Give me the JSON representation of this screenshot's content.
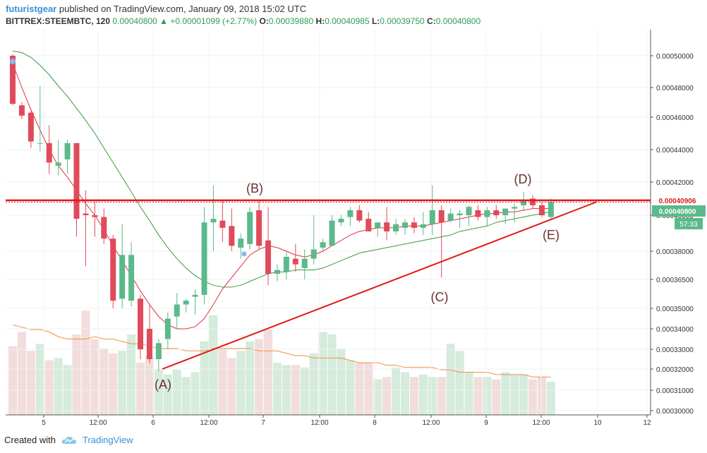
{
  "header": {
    "user": "futuristgear",
    "published": "published on TradingView.com, January 09, 2018 15:02 UTC",
    "symbol": "BITTREX:STEEMBTC, 120",
    "last": "0.00040800",
    "change": "▲ +0.00001099 (+2.77%)",
    "o_label": "O:",
    "o": "0.00039880",
    "h_label": "H:",
    "h": "0.00040985",
    "l_label": "L:",
    "l": "0.00039750",
    "c_label": "C:",
    "c": "0.00040800"
  },
  "footer": {
    "created": "Created with",
    "brand": "TradingView"
  },
  "colors": {
    "up": "#5bb98b",
    "down": "#e04b5a",
    "ma_fast": "#e0323c",
    "ma_slow": "#3c9a3c",
    "vol_ma": "#f09040",
    "resistance": "#e01818",
    "support": "#e01818"
  },
  "chart_data": {
    "type": "candlestick",
    "price_ticks": [
      "0.00050000",
      "0.00048000",
      "0.00046000",
      "0.00044000",
      "0.00042000",
      "0.00040000",
      "0.00038000",
      "0.00036500",
      "0.00035000",
      "0.00034000",
      "0.00033000",
      "0.00032000",
      "0.00031000",
      "0.00030000"
    ],
    "time_ticks": [
      "5",
      "12:00",
      "6",
      "12:00",
      "7",
      "12:00",
      "8",
      "12:00",
      "9",
      "12:00",
      "10",
      "12"
    ],
    "price_badges": {
      "resistance": "0.00040906",
      "last": "0.00040800",
      "countdown": "57:33"
    },
    "annotations": [
      "(A)",
      "(B)",
      "(C)",
      "(D)",
      "(E)"
    ],
    "candles": [
      {
        "o": 0.0005,
        "h": 0.000501,
        "l": 0.000468,
        "c": 0.000469
      },
      {
        "o": 0.000468,
        "h": 0.00047,
        "l": 0.000459,
        "c": 0.000461
      },
      {
        "o": 0.000463,
        "h": 0.000464,
        "l": 0.000441,
        "c": 0.000445
      },
      {
        "o": 0.000444,
        "h": 0.000481,
        "l": 0.000439,
        "c": 0.000444
      },
      {
        "o": 0.000444,
        "h": 0.000455,
        "l": 0.000425,
        "c": 0.000432
      },
      {
        "o": 0.00043,
        "h": 0.000446,
        "l": 0.000424,
        "c": 0.000432
      },
      {
        "o": 0.000434,
        "h": 0.000446,
        "l": 0.000425,
        "c": 0.000444
      },
      {
        "o": 0.000444,
        "h": 0.000444,
        "l": 0.000388,
        "c": 0.000398
      },
      {
        "o": 0.000401,
        "h": 0.000415,
        "l": 0.000372,
        "c": 0.0004
      },
      {
        "o": 0.0004,
        "h": 0.000408,
        "l": 0.000388,
        "c": 0.000399
      },
      {
        "o": 0.000399,
        "h": 0.000404,
        "l": 0.000384,
        "c": 0.000387
      },
      {
        "o": 0.000387,
        "h": 0.000389,
        "l": 0.00035,
        "c": 0.000354
      },
      {
        "o": 0.000355,
        "h": 0.000395,
        "l": 0.00035,
        "c": 0.000378
      },
      {
        "o": 0.000354,
        "h": 0.000385,
        "l": 0.000351,
        "c": 0.000378
      },
      {
        "o": 0.000355,
        "h": 0.000357,
        "l": 0.000325,
        "c": 0.00033
      },
      {
        "o": 0.00034,
        "h": 0.000352,
        "l": 0.000323,
        "c": 0.000325
      },
      {
        "o": 0.000325,
        "h": 0.000335,
        "l": 0.000319,
        "c": 0.000333
      },
      {
        "o": 0.000335,
        "h": 0.000348,
        "l": 0.00033,
        "c": 0.000345
      },
      {
        "o": 0.000346,
        "h": 0.000358,
        "l": 0.00034,
        "c": 0.000352
      },
      {
        "o": 0.000352,
        "h": 0.000355,
        "l": 0.000348,
        "c": 0.000354
      },
      {
        "o": 0.000356,
        "h": 0.00036,
        "l": 0.000347,
        "c": 0.000357
      },
      {
        "o": 0.000357,
        "h": 0.000405,
        "l": 0.000352,
        "c": 0.000396
      },
      {
        "o": 0.000396,
        "h": 0.000418,
        "l": 0.00038,
        "c": 0.000398
      },
      {
        "o": 0.000397,
        "h": 0.000409,
        "l": 0.000385,
        "c": 0.000393
      },
      {
        "o": 0.000394,
        "h": 0.000404,
        "l": 0.00038,
        "c": 0.000383
      },
      {
        "o": 0.000382,
        "h": 0.00039,
        "l": 0.000376,
        "c": 0.000387
      },
      {
        "o": 0.000384,
        "h": 0.000405,
        "l": 0.000381,
        "c": 0.000402
      },
      {
        "o": 0.000403,
        "h": 0.000409,
        "l": 0.000381,
        "c": 0.000383
      },
      {
        "o": 0.000386,
        "h": 0.000405,
        "l": 0.000362,
        "c": 0.000368
      },
      {
        "o": 0.000368,
        "h": 0.000373,
        "l": 0.000364,
        "c": 0.00037
      },
      {
        "o": 0.000369,
        "h": 0.00038,
        "l": 0.000365,
        "c": 0.000377
      },
      {
        "o": 0.000376,
        "h": 0.000384,
        "l": 0.000369,
        "c": 0.000373
      },
      {
        "o": 0.000371,
        "h": 0.000381,
        "l": 0.000365,
        "c": 0.000376
      },
      {
        "o": 0.000376,
        "h": 0.0004,
        "l": 0.000373,
        "c": 0.000381
      },
      {
        "o": 0.000382,
        "h": 0.000387,
        "l": 0.00038,
        "c": 0.000385
      },
      {
        "o": 0.000383,
        "h": 0.0004,
        "l": 0.000383,
        "c": 0.000397
      },
      {
        "o": 0.000396,
        "h": 0.0004,
        "l": 0.000394,
        "c": 0.000398
      },
      {
        "o": 0.000399,
        "h": 0.000405,
        "l": 0.000394,
        "c": 0.000403
      },
      {
        "o": 0.000403,
        "h": 0.000406,
        "l": 0.000396,
        "c": 0.000397
      },
      {
        "o": 0.000398,
        "h": 0.000402,
        "l": 0.000391,
        "c": 0.000391
      },
      {
        "o": 0.000393,
        "h": 0.000396,
        "l": 0.000388,
        "c": 0.000396
      },
      {
        "o": 0.000396,
        "h": 0.000405,
        "l": 0.000386,
        "c": 0.000391
      },
      {
        "o": 0.000391,
        "h": 0.000398,
        "l": 0.000389,
        "c": 0.000395
      },
      {
        "o": 0.000393,
        "h": 0.000398,
        "l": 0.000389,
        "c": 0.000396
      },
      {
        "o": 0.000396,
        "h": 0.000399,
        "l": 0.00039,
        "c": 0.000393
      },
      {
        "o": 0.000393,
        "h": 0.000402,
        "l": 0.000389,
        "c": 0.000395
      },
      {
        "o": 0.000395,
        "h": 0.000418,
        "l": 0.000389,
        "c": 0.000403
      },
      {
        "o": 0.000403,
        "h": 0.000406,
        "l": 0.000366,
        "c": 0.000396
      },
      {
        "o": 0.000397,
        "h": 0.000404,
        "l": 0.000396,
        "c": 0.000401
      },
      {
        "o": 0.0004,
        "h": 0.000403,
        "l": 0.000393,
        "c": 0.000401
      },
      {
        "o": 0.0004,
        "h": 0.000406,
        "l": 0.000394,
        "c": 0.000405
      },
      {
        "o": 0.000403,
        "h": 0.000406,
        "l": 0.000397,
        "c": 0.000399
      },
      {
        "o": 0.000399,
        "h": 0.000405,
        "l": 0.000394,
        "c": 0.000403
      },
      {
        "o": 0.000403,
        "h": 0.000406,
        "l": 0.000398,
        "c": 0.0004
      },
      {
        "o": 0.0004,
        "h": 0.000404,
        "l": 0.000395,
        "c": 0.000404
      },
      {
        "o": 0.000404,
        "h": 0.000407,
        "l": 0.000396,
        "c": 0.000405
      },
      {
        "o": 0.000406,
        "h": 0.000414,
        "l": 0.000403,
        "c": 0.000409
      },
      {
        "o": 0.00041,
        "h": 0.000412,
        "l": 0.000404,
        "c": 0.000406
      },
      {
        "o": 0.000406,
        "h": 0.000408,
        "l": 0.000399,
        "c": 0.0004
      },
      {
        "o": 0.000399,
        "h": 0.00041,
        "l": 0.000398,
        "c": 0.000408
      }
    ],
    "volume": [
      29,
      35,
      27,
      30,
      23,
      24,
      21,
      34,
      44,
      32,
      28,
      26,
      27,
      34,
      22,
      25,
      19,
      17,
      19,
      16,
      18,
      31,
      42,
      28,
      24,
      27,
      31,
      32,
      36,
      22,
      21,
      21,
      20,
      26,
      35,
      34,
      28,
      23,
      22,
      22,
      15,
      16,
      20,
      18,
      16,
      17,
      16,
      16,
      30,
      27,
      18,
      16,
      16,
      15,
      18,
      17,
      17,
      15,
      16,
      14
    ],
    "volume_ylim": [
      0,
      50
    ],
    "ma_fast": [
      0.000495,
      0.00048,
      0.000465,
      0.000452,
      0.00044,
      0.00043,
      0.000423,
      0.000415,
      0.000407,
      0.0004,
      0.000392,
      0.000383,
      0.000375,
      0.000367,
      0.000359,
      0.000352,
      0.000346,
      0.000342,
      0.00034,
      0.00034,
      0.000341,
      0.000345,
      0.000352,
      0.00036,
      0.000366,
      0.000372,
      0.000378,
      0.000381,
      0.000383,
      0.000382,
      0.00038,
      0.000378,
      0.000377,
      0.000378,
      0.00038,
      0.000383,
      0.000386,
      0.000389,
      0.000391,
      0.000392,
      0.000393,
      0.000393,
      0.000393,
      0.000394,
      0.000394,
      0.000394,
      0.000395,
      0.000396,
      0.000397,
      0.000398,
      0.000399,
      0.0004,
      0.000401,
      0.000401,
      0.000402,
      0.000402,
      0.000403,
      0.000404,
      0.000404,
      0.000404
    ],
    "ma_slow": [
      0.000503,
      0.000502,
      0.000499,
      0.000494,
      0.000488,
      0.000481,
      0.000474,
      0.000466,
      0.000458,
      0.00045,
      0.000441,
      0.000432,
      0.000423,
      0.000414,
      0.000405,
      0.000397,
      0.000389,
      0.000382,
      0.000376,
      0.000371,
      0.000367,
      0.000364,
      0.000362,
      0.000361,
      0.000361,
      0.000362,
      0.000364,
      0.000366,
      0.000368,
      0.000369,
      0.000369,
      0.00037,
      0.00037,
      0.00037,
      0.000371,
      0.000373,
      0.000375,
      0.000377,
      0.000379,
      0.00038,
      0.000381,
      0.000382,
      0.000383,
      0.000384,
      0.000385,
      0.000386,
      0.000387,
      0.000388,
      0.000389,
      0.000391,
      0.000392,
      0.000393,
      0.000394,
      0.000396,
      0.000397,
      0.000398,
      0.000399,
      0.0004,
      0.000401,
      0.000402
    ],
    "vol_ma": [
      38,
      37,
      36,
      36,
      35,
      33,
      32,
      32,
      32,
      33,
      32,
      32,
      31,
      30,
      30,
      29,
      28,
      28,
      28,
      27,
      27,
      27,
      28,
      28,
      28,
      28,
      28,
      27,
      27,
      27,
      26,
      25,
      25,
      24,
      24,
      24,
      24,
      23,
      22,
      22,
      22,
      21,
      21,
      20,
      20,
      20,
      20,
      19,
      19,
      18,
      18,
      18,
      18,
      17,
      17,
      17,
      17,
      16,
      16,
      16
    ]
  }
}
